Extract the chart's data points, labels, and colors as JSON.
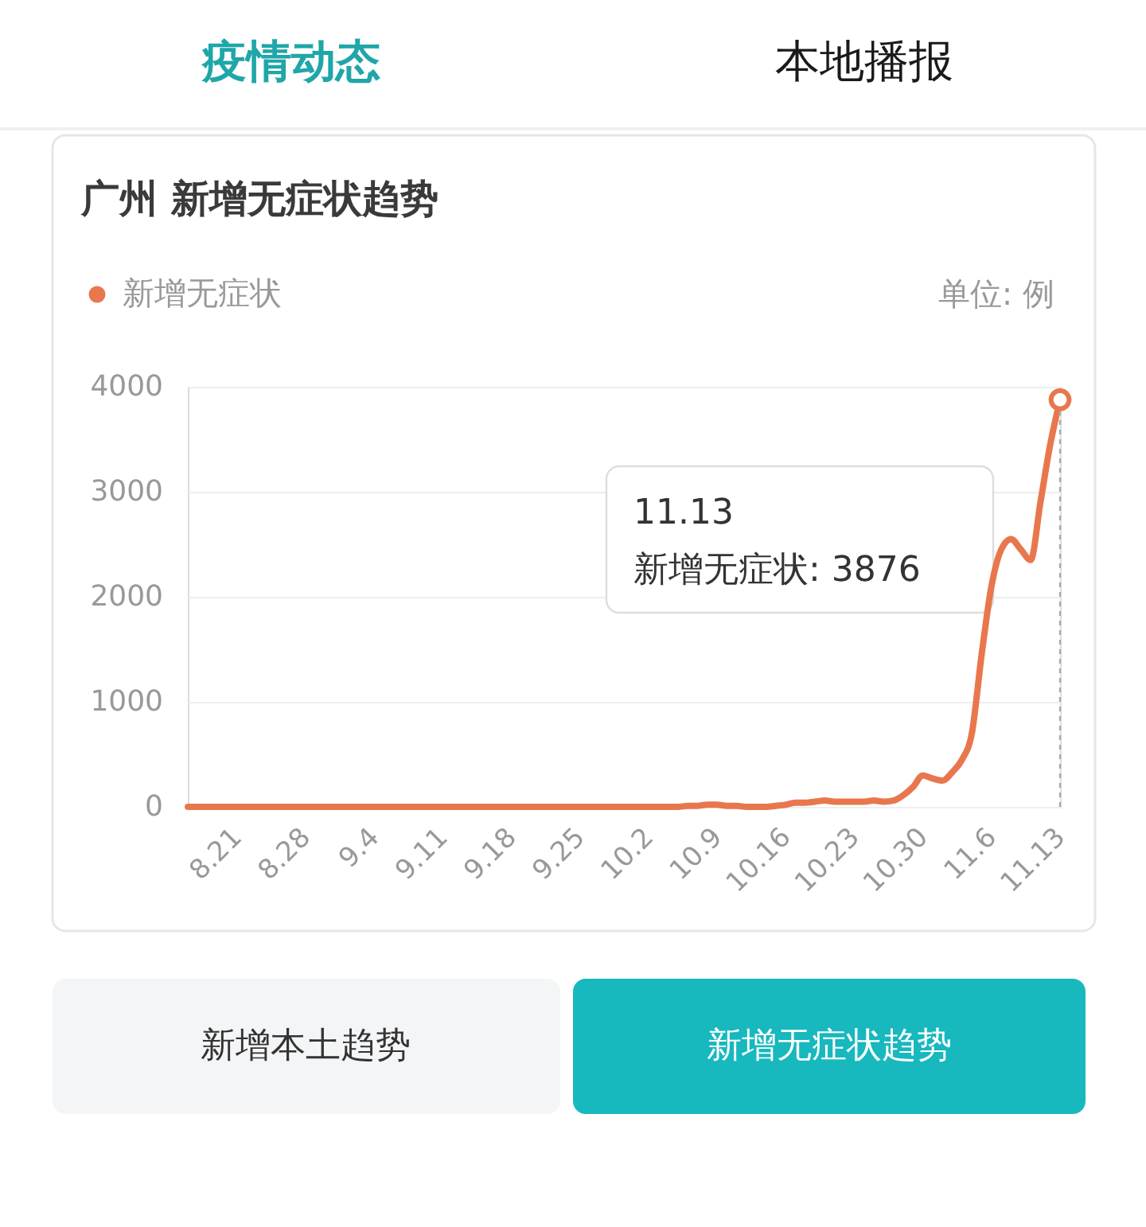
{
  "chart_data": {
    "type": "line",
    "title": "广州 新增无症状趋势",
    "ylabel": "单位: 例",
    "categories": [
      null,
      null,
      null,
      null,
      null,
      "8.21",
      null,
      null,
      null,
      null,
      null,
      null,
      "8.28",
      null,
      null,
      null,
      null,
      null,
      null,
      "9.4",
      null,
      null,
      null,
      null,
      null,
      null,
      "9.11",
      null,
      null,
      null,
      null,
      null,
      null,
      "9.18",
      null,
      null,
      null,
      null,
      null,
      null,
      "9.25",
      null,
      null,
      null,
      null,
      null,
      null,
      "10.2",
      null,
      null,
      null,
      null,
      null,
      null,
      "10.9",
      null,
      null,
      null,
      null,
      null,
      null,
      "10.16",
      null,
      null,
      null,
      null,
      null,
      null,
      "10.23",
      null,
      null,
      null,
      null,
      null,
      null,
      "10.30",
      null,
      null,
      null,
      null,
      null,
      null,
      "11.6",
      null,
      null,
      null,
      null,
      null,
      null,
      "11.13"
    ],
    "series": [
      {
        "name": "新增无症状",
        "color": "#e8774d",
        "values": [
          0,
          0,
          0,
          0,
          0,
          0,
          0,
          0,
          0,
          0,
          0,
          0,
          0,
          0,
          0,
          0,
          0,
          0,
          0,
          0,
          0,
          0,
          0,
          0,
          0,
          0,
          0,
          0,
          0,
          0,
          0,
          0,
          0,
          0,
          0,
          0,
          0,
          0,
          0,
          0,
          0,
          0,
          0,
          0,
          0,
          0,
          0,
          0,
          0,
          0,
          0,
          10,
          10,
          20,
          20,
          10,
          10,
          0,
          0,
          0,
          10,
          20,
          40,
          40,
          50,
          60,
          50,
          50,
          50,
          50,
          60,
          50,
          60,
          110,
          190,
          300,
          270,
          250,
          330,
          450,
          700,
          1450,
          2100,
          2450,
          2550,
          2450,
          2350,
          2900,
          3450,
          3876
        ]
      }
    ],
    "ylim": [
      0,
      4000
    ],
    "yticks": [
      0,
      1000,
      2000,
      3000,
      4000
    ],
    "grid": "y",
    "legend": "top left",
    "line_style": "solid",
    "ref_lines": [
      {
        "axis": "x",
        "value": "11.13",
        "color": "#aaaaaa",
        "line_style": "dotted"
      }
    ],
    "annotations": [
      "疫情动态",
      "本地播报",
      "新增无症状: 3876",
      "新增本土趋势",
      "新增无症状趋势"
    ]
  }
}
